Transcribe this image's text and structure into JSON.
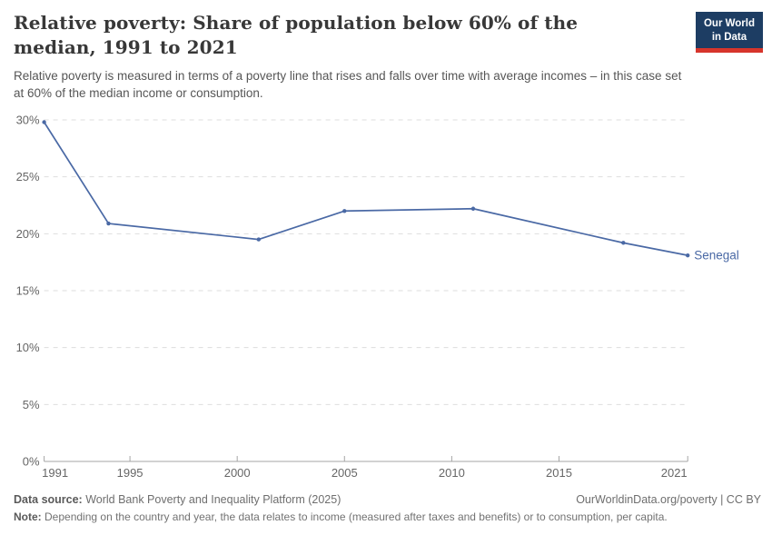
{
  "header": {
    "title": "Relative poverty: Share of population below 60% of the median, 1991 to 2021",
    "subtitle": "Relative poverty is measured in terms of a poverty line that rises and falls over time with average incomes – in this case set at 60% of the median income or consumption.",
    "logo": {
      "line1": "Our World",
      "line2": "in Data"
    }
  },
  "chart_data": {
    "type": "line",
    "title": "Relative poverty: Share of population below 60% of the median, 1991 to 2021",
    "x": [
      1991,
      1994,
      2001,
      2005,
      2011,
      2018,
      2021
    ],
    "series": [
      {
        "name": "Senegal",
        "values": [
          29.8,
          20.9,
          19.5,
          22.0,
          22.2,
          19.2,
          18.1
        ],
        "color": "#4a69a5"
      }
    ],
    "x_ticks": [
      1991,
      1995,
      2000,
      2005,
      2010,
      2015,
      2021
    ],
    "y_ticks": [
      0,
      5,
      10,
      15,
      20,
      25,
      30
    ],
    "y_tick_suffix": "%",
    "xlim": [
      1991,
      2021
    ],
    "ylim": [
      0,
      30
    ],
    "grid": "horizontal-dashed",
    "legend_position": "end-of-line-label",
    "xlabel": "",
    "ylabel": ""
  },
  "footer": {
    "source_label": "Data source:",
    "source_text": " World Bank Poverty and Inequality Platform (2025)",
    "rights": "OurWorldinData.org/poverty | CC BY",
    "note_label": "Note:",
    "note_text": " Depending on the country and year, the data relates to income (measured after taxes and benefits) or to consumption, per capita."
  },
  "colors": {
    "accent_line": "#4a69a5",
    "logo_bg": "#1d3d63",
    "logo_underline": "#d7352c",
    "gridline": "#dddddd",
    "axis": "#a5a5a5",
    "tick_label": "#666666",
    "title_text": "#383838",
    "subtitle_text": "#565656"
  }
}
